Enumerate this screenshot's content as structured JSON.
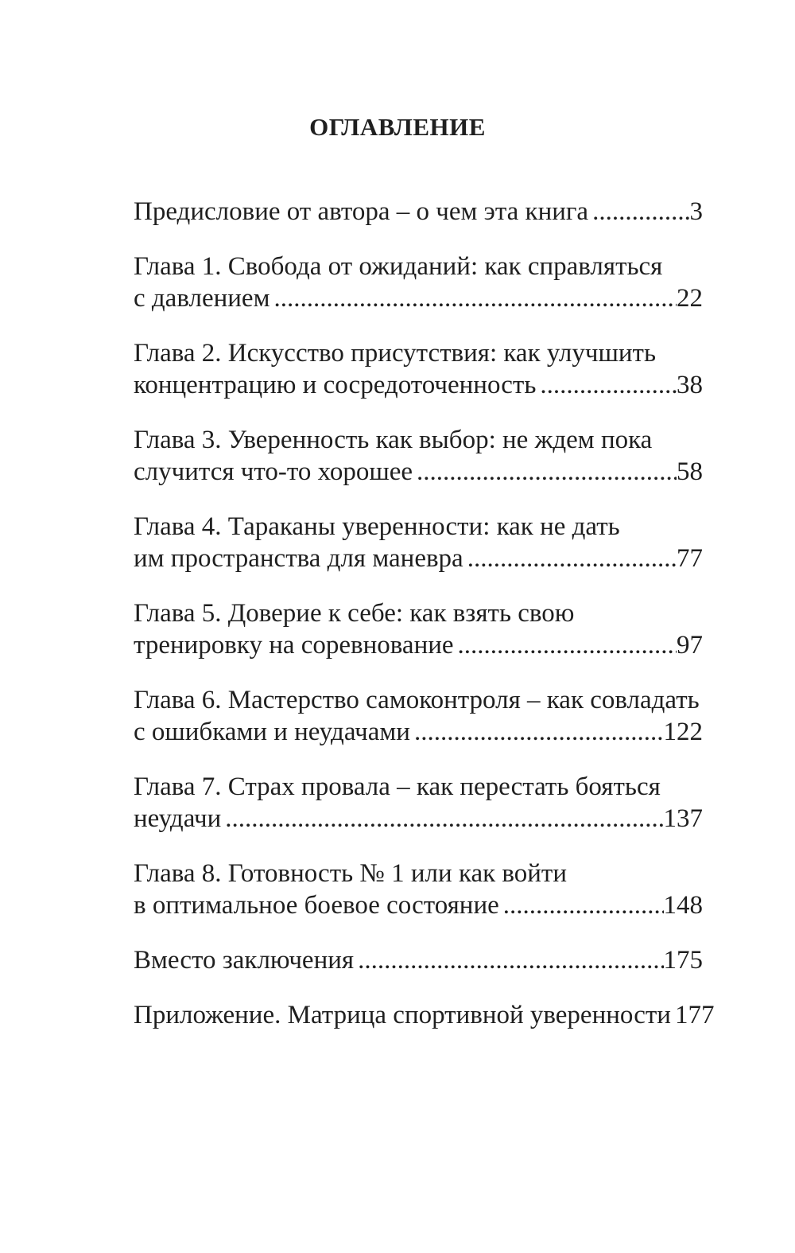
{
  "colors": {
    "text": "#1f1f1f",
    "background": "#ffffff"
  },
  "page": {
    "title": "ОГЛАВЛЕНИЕ",
    "toc": {
      "entries": [
        {
          "lines": [
            "Предисловие от автора – о чем эта книга"
          ],
          "page": "3"
        },
        {
          "lines": [
            "Глава 1. Свобода от ожиданий: как справляться",
            "с давлением"
          ],
          "page": "22"
        },
        {
          "lines": [
            "Глава 2. Искусство присутствия: как улучшить",
            "концентрацию и сосредоточенность"
          ],
          "page": "38"
        },
        {
          "lines": [
            "Глава 3. Уверенность как выбор: не ждем пока",
            "случится что-то хорошее"
          ],
          "page": "58"
        },
        {
          "lines": [
            "Глава 4. Тараканы уверенности: как не дать",
            "им пространства для маневра"
          ],
          "page": "77"
        },
        {
          "lines": [
            "Глава 5. Доверие к себе: как взять свою",
            "тренировку на соревнование"
          ],
          "page": "97"
        },
        {
          "lines": [
            "Глава 6. Мастерство самоконтроля – как совладать",
            "с ошибками и неудачами"
          ],
          "page": "122"
        },
        {
          "lines": [
            "Глава 7. Страх провала – как перестать бояться",
            "неудачи"
          ],
          "page": "137"
        },
        {
          "lines": [
            "Глава 8. Готовность № 1 или как войти",
            "в оптимальное боевое состояние"
          ],
          "page": "148"
        },
        {
          "lines": [
            "Вместо заключения"
          ],
          "page": "175"
        },
        {
          "lines": [
            "Приложение. Матрица спортивной уверенности"
          ],
          "page": "177"
        }
      ]
    }
  }
}
